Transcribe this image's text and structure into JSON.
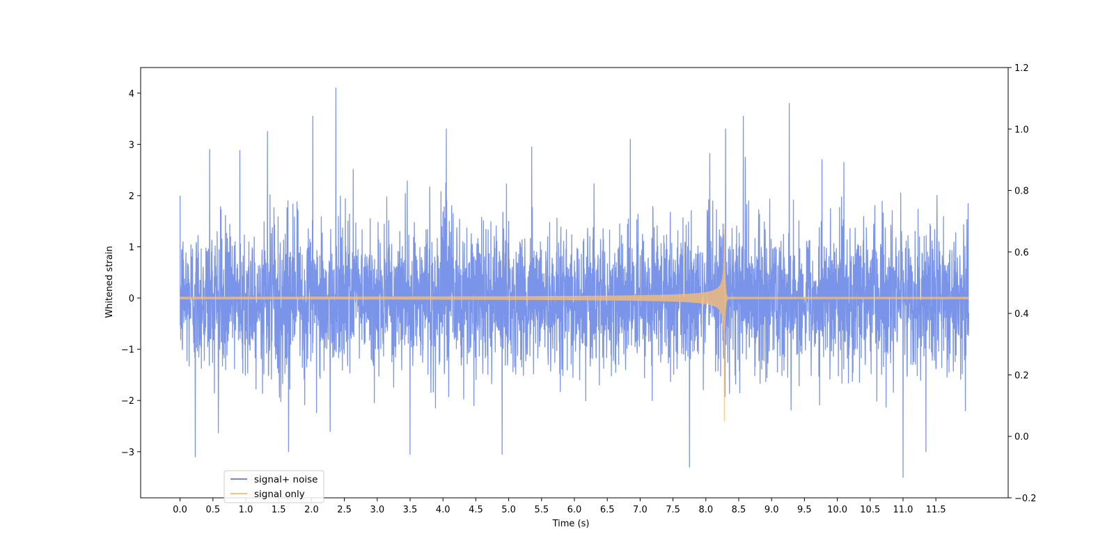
{
  "chart_data": {
    "type": "line",
    "title": "",
    "xlabel": "Time (s)",
    "ylabel": "Whitened strain",
    "y2label": "",
    "xlim": [
      -0.6,
      12.6
    ],
    "ylim": [
      -3.9,
      4.5
    ],
    "y2lim": [
      -0.2,
      1.2
    ],
    "x_ticks": [
      0.0,
      0.5,
      1.0,
      1.5,
      2.0,
      2.5,
      3.0,
      3.5,
      4.0,
      4.5,
      5.0,
      5.5,
      6.0,
      6.5,
      7.0,
      7.5,
      8.0,
      8.5,
      9.0,
      9.5,
      10.0,
      10.5,
      11.0,
      11.5
    ],
    "x_tick_labels": [
      "0.0",
      "0.5",
      "1.0",
      "1.5",
      "2.0",
      "2.5",
      "3.0",
      "3.5",
      "4.0",
      "4.5",
      "5.0",
      "5.5",
      "6.0",
      "6.5",
      "7.0",
      "7.5",
      "8.0",
      "8.5",
      "9.0",
      "9.5",
      "10.0",
      "10.5",
      "11.0",
      "11.5"
    ],
    "y_ticks": [
      -3,
      -2,
      -1,
      0,
      1,
      2,
      3,
      4
    ],
    "y_tick_labels": [
      "−3",
      "−2",
      "−1",
      "0",
      "1",
      "2",
      "3",
      "4"
    ],
    "y2_ticks": [
      -0.2,
      0.0,
      0.2,
      0.4,
      0.6,
      0.8,
      1.0,
      1.2
    ],
    "y2_tick_labels": [
      "−0.2",
      "0.0",
      "0.2",
      "0.4",
      "0.6",
      "0.8",
      "1.0",
      "1.2"
    ],
    "grid": false,
    "legend_position": "lower-left",
    "series": [
      {
        "name": "signal+ noise",
        "color": "#6a88e6",
        "x_range": [
          0.0,
          12.0
        ],
        "envelope": {
          "typical_peak": 2.2,
          "spikes": [
            {
              "x": 0.23,
              "y": -3.1
            },
            {
              "x": 0.45,
              "y": 2.9
            },
            {
              "x": 0.91,
              "y": 2.88
            },
            {
              "x": 1.33,
              "y": 3.25
            },
            {
              "x": 1.65,
              "y": -3.0
            },
            {
              "x": 2.02,
              "y": 3.55
            },
            {
              "x": 2.37,
              "y": 4.1
            },
            {
              "x": 3.5,
              "y": -3.05
            },
            {
              "x": 4.05,
              "y": 3.3
            },
            {
              "x": 4.9,
              "y": -3.05
            },
            {
              "x": 5.35,
              "y": 2.95
            },
            {
              "x": 6.85,
              "y": 3.1
            },
            {
              "x": 7.75,
              "y": -3.3
            },
            {
              "x": 8.3,
              "y": 3.3
            },
            {
              "x": 8.57,
              "y": 3.55
            },
            {
              "x": 9.27,
              "y": 3.8
            },
            {
              "x": 10.1,
              "y": 2.65
            },
            {
              "x": 11.0,
              "y": -3.5
            },
            {
              "x": 11.35,
              "y": -3.0
            },
            {
              "x": 11.95,
              "y": -2.2
            }
          ]
        }
      },
      {
        "name": "signal only",
        "color": "#fdbf6f",
        "x_range": [
          0.0,
          12.0
        ],
        "merger_time": 8.28,
        "peak_amplitude": 1.5,
        "min_amplitude": -2.4
      }
    ]
  }
}
